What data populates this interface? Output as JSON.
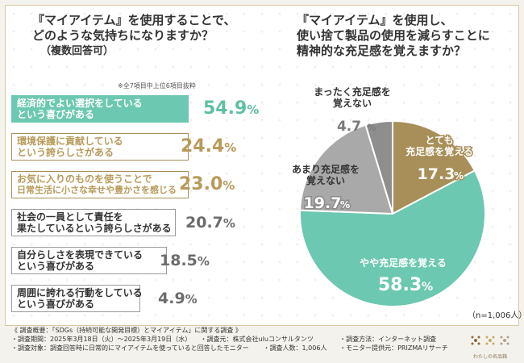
{
  "left_question": {
    "line1": "『マイアイテム』を使用することで、",
    "line2": "どのような気持ちになりますか？",
    "line3": "（複数回答可）"
  },
  "right_question": {
    "line1": "『マイアイテム』を使用し、",
    "line2": "使い捨て製品の使用を減らすことに",
    "line3": "精神的な充足感を覚えますか？"
  },
  "top_note": "※全7項目中上位6項目抜粋",
  "colors": {
    "teal": "#6cc8b0",
    "gold": "#a88e58",
    "gray": "#9a9a9a",
    "teal_text": "#5fbfa5",
    "gold_text": "#b89a5a",
    "gray_text": "#6c6c6c"
  },
  "chart_data": [
    {
      "type": "bar",
      "categories": [
        "経済的でよい選択をしているという喜びがある",
        "環境保護に貢献しているという誇らしさがある",
        "お気に入りのものを使うことで日常生活に小さな幸せや豊かさを感じる",
        "社会の一員として責任を果たしているという誇らしさがある",
        "自分らしさを表現できているという喜びがある",
        "周囲に誇れる行動をしているという喜びがある"
      ],
      "label_lines": [
        [
          "経済的でよい選択をしている",
          "という喜びがある"
        ],
        [
          "環境保護に貢献している",
          "という誇らしさがある"
        ],
        [
          "お気に入りのものを使うことで",
          "日常生活に小さな幸せや豊かさを感じる"
        ],
        [
          "社会の一員として責任を",
          "果たしているという誇らしさがある"
        ],
        [
          "自分らしさを表現できている",
          "という喜びがある"
        ],
        [
          "周囲に誇れる行動をしている",
          "という喜びがある"
        ]
      ],
      "values": [
        54.9,
        24.4,
        23.0,
        20.7,
        18.5,
        4.9
      ],
      "value_labels": [
        "54.9",
        "24.4",
        "23.0",
        "20.7",
        "18.5",
        "4.9"
      ],
      "unit": "%",
      "highlight": [
        "teal",
        "gold",
        "gold",
        "gray",
        "gray",
        "gray"
      ]
    },
    {
      "type": "pie",
      "categories": [
        "とても充足感を覚える",
        "やや充足感を覚える",
        "あまり充足感を覚えない",
        "まったく充足感を覚えない"
      ],
      "values": [
        17.3,
        58.3,
        19.7,
        4.7
      ],
      "value_labels": [
        "17.3",
        "58.3",
        "19.7",
        "4.7"
      ],
      "unit": "%",
      "label_lines": [
        [
          "とても",
          "充足感を覚える"
        ],
        [
          "やや充足感を覚える"
        ],
        [
          "あまり充足感を",
          "覚えない"
        ],
        [
          "まったく充足感を",
          "覚えない"
        ]
      ],
      "slice_colors": [
        "gold",
        "teal",
        "gray_light",
        "gray_dark"
      ],
      "n_note": "（n=1,006人）"
    }
  ],
  "footer": {
    "line1": "《 調査概要：「SDGs（持続可能な開発目標）とマイアイテム」に関する調査 》",
    "period": "・調査期間：2025年3月18日（火）～2025年3月19日（水）",
    "org": "・調査元：株式会社uluコンサルタンツ",
    "method": "・調査方法：インターネット調査",
    "target": "・調査対象：調査回答時に日常的にマイアイテムを使っていると回答したモニター",
    "count": "・調査人数：1,006人",
    "provider": "・モニター提供元：PRIZMAリサーチ"
  },
  "logo_text": "わたしの名品箱"
}
